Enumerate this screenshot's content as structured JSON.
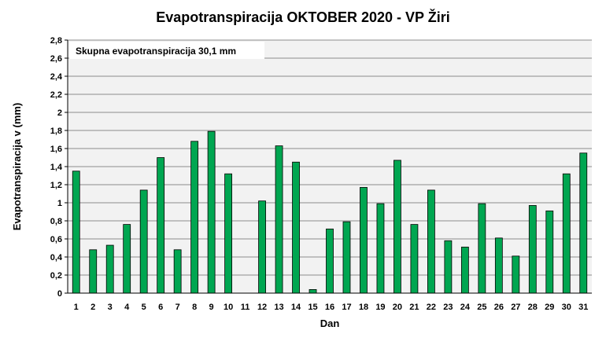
{
  "chart_data": {
    "type": "bar",
    "title": "Evapotranspiracija  OKTOBER  2020 - VP Žiri",
    "xlabel": "Dan",
    "ylabel": "Evapotranspiracija v  (mm)",
    "annotation": "Skupna evapotranspiracija  30,1 mm",
    "ylim": [
      0,
      2.8
    ],
    "ytick_step": 0.2,
    "ytick_labels": [
      "0",
      "0,2",
      "0,4",
      "0,6",
      "0,8",
      "1",
      "1,2",
      "1,4",
      "1,6",
      "1,8",
      "2",
      "2,2",
      "2,4",
      "2,6",
      "2,8"
    ],
    "categories": [
      "1",
      "2",
      "3",
      "4",
      "5",
      "6",
      "7",
      "8",
      "9",
      "10",
      "11",
      "12",
      "13",
      "14",
      "15",
      "16",
      "17",
      "18",
      "19",
      "20",
      "21",
      "22",
      "23",
      "24",
      "25",
      "26",
      "27",
      "28",
      "29",
      "30",
      "31"
    ],
    "values": [
      1.35,
      0.48,
      0.53,
      0.76,
      1.14,
      1.5,
      0.48,
      1.68,
      1.79,
      1.32,
      0,
      1.02,
      1.63,
      1.45,
      0.04,
      0.71,
      0.79,
      1.17,
      0.99,
      1.47,
      0.76,
      1.14,
      0.58,
      0.51,
      0.99,
      0.61,
      0.41,
      0.97,
      0.91,
      1.32,
      1.55
    ],
    "grid": true,
    "legend": "none",
    "bar_color": "#00a651",
    "bar_edge_color": "#000000",
    "plot_background": "#f2f2f2"
  }
}
